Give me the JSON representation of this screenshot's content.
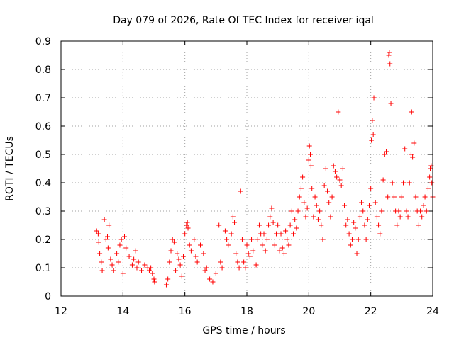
{
  "chart_data": {
    "type": "scatter",
    "title": "Day 079 of 2026, Rate Of TEC Index for receiver iqal",
    "xlabel": "GPS time / hours",
    "ylabel": "ROTI / TECUs",
    "xlim": [
      12,
      24
    ],
    "ylim": [
      0,
      0.9
    ],
    "x_ticks": [
      12,
      14,
      16,
      18,
      20,
      22,
      24
    ],
    "x_tick_labels": [
      "12",
      "14",
      "16",
      "18",
      "20",
      "22",
      "24"
    ],
    "y_ticks": [
      0,
      0.1,
      0.2,
      0.3,
      0.4,
      0.5,
      0.6,
      0.7,
      0.8,
      0.9
    ],
    "y_tick_labels": [
      "0",
      "0.1",
      "0.2",
      "0.3",
      "0.4",
      "0.5",
      "0.6",
      "0.7",
      "0.8",
      "0.9"
    ],
    "grid": true,
    "marker": "plus",
    "color": "#ff0000",
    "series": [
      {
        "name": "ROTI",
        "points": [
          [
            13.15,
            0.23
          ],
          [
            13.2,
            0.22
          ],
          [
            13.22,
            0.19
          ],
          [
            13.25,
            0.15
          ],
          [
            13.3,
            0.12
          ],
          [
            13.33,
            0.09
          ],
          [
            13.4,
            0.27
          ],
          [
            13.45,
            0.2
          ],
          [
            13.5,
            0.21
          ],
          [
            13.52,
            0.17
          ],
          [
            13.55,
            0.25
          ],
          [
            13.6,
            0.13
          ],
          [
            13.65,
            0.11
          ],
          [
            13.7,
            0.09
          ],
          [
            13.8,
            0.15
          ],
          [
            13.85,
            0.12
          ],
          [
            13.9,
            0.18
          ],
          [
            13.95,
            0.2
          ],
          [
            14.0,
            0.08
          ],
          [
            14.05,
            0.21
          ],
          [
            14.1,
            0.17
          ],
          [
            14.2,
            0.14
          ],
          [
            14.3,
            0.11
          ],
          [
            14.35,
            0.13
          ],
          [
            14.4,
            0.16
          ],
          [
            14.45,
            0.1
          ],
          [
            14.5,
            0.12
          ],
          [
            14.6,
            0.09
          ],
          [
            14.7,
            0.11
          ],
          [
            14.8,
            0.1
          ],
          [
            14.85,
            0.09
          ],
          [
            14.9,
            0.1
          ],
          [
            14.95,
            0.08
          ],
          [
            15.0,
            0.06
          ],
          [
            15.02,
            0.05
          ],
          [
            15.4,
            0.04
          ],
          [
            15.45,
            0.06
          ],
          [
            15.5,
            0.12
          ],
          [
            15.55,
            0.16
          ],
          [
            15.6,
            0.2
          ],
          [
            15.65,
            0.19
          ],
          [
            15.7,
            0.09
          ],
          [
            15.75,
            0.15
          ],
          [
            15.8,
            0.13
          ],
          [
            15.85,
            0.11
          ],
          [
            15.9,
            0.07
          ],
          [
            15.95,
            0.14
          ],
          [
            16.0,
            0.22
          ],
          [
            16.05,
            0.25
          ],
          [
            16.08,
            0.26
          ],
          [
            16.1,
            0.24
          ],
          [
            16.15,
            0.18
          ],
          [
            16.2,
            0.16
          ],
          [
            16.3,
            0.2
          ],
          [
            16.35,
            0.14
          ],
          [
            16.4,
            0.12
          ],
          [
            16.5,
            0.18
          ],
          [
            16.6,
            0.15
          ],
          [
            16.65,
            0.09
          ],
          [
            16.7,
            0.1
          ],
          [
            16.8,
            0.06
          ],
          [
            16.9,
            0.05
          ],
          [
            17.0,
            0.08
          ],
          [
            17.1,
            0.25
          ],
          [
            17.15,
            0.12
          ],
          [
            17.2,
            0.1
          ],
          [
            17.3,
            0.23
          ],
          [
            17.35,
            0.2
          ],
          [
            17.4,
            0.18
          ],
          [
            17.5,
            0.22
          ],
          [
            17.55,
            0.28
          ],
          [
            17.6,
            0.26
          ],
          [
            17.65,
            0.15
          ],
          [
            17.7,
            0.12
          ],
          [
            17.75,
            0.1
          ],
          [
            17.8,
            0.37
          ],
          [
            17.85,
            0.2
          ],
          [
            17.9,
            0.12
          ],
          [
            17.95,
            0.1
          ],
          [
            18.0,
            0.18
          ],
          [
            18.05,
            0.15
          ],
          [
            18.1,
            0.14
          ],
          [
            18.15,
            0.2
          ],
          [
            18.2,
            0.16
          ],
          [
            18.3,
            0.11
          ],
          [
            18.35,
            0.2
          ],
          [
            18.4,
            0.25
          ],
          [
            18.45,
            0.22
          ],
          [
            18.5,
            0.18
          ],
          [
            18.55,
            0.22
          ],
          [
            18.6,
            0.16
          ],
          [
            18.65,
            0.2
          ],
          [
            18.7,
            0.25
          ],
          [
            18.75,
            0.28
          ],
          [
            18.8,
            0.31
          ],
          [
            18.85,
            0.26
          ],
          [
            18.9,
            0.18
          ],
          [
            18.95,
            0.22
          ],
          [
            19.0,
            0.25
          ],
          [
            19.05,
            0.16
          ],
          [
            19.1,
            0.22
          ],
          [
            19.15,
            0.17
          ],
          [
            19.2,
            0.15
          ],
          [
            19.25,
            0.23
          ],
          [
            19.3,
            0.2
          ],
          [
            19.35,
            0.18
          ],
          [
            19.4,
            0.25
          ],
          [
            19.45,
            0.3
          ],
          [
            19.5,
            0.22
          ],
          [
            19.55,
            0.27
          ],
          [
            19.6,
            0.24
          ],
          [
            19.65,
            0.3
          ],
          [
            19.7,
            0.35
          ],
          [
            19.75,
            0.38
          ],
          [
            19.8,
            0.42
          ],
          [
            19.85,
            0.33
          ],
          [
            19.9,
            0.28
          ],
          [
            19.95,
            0.31
          ],
          [
            20.0,
            0.48
          ],
          [
            20.02,
            0.53
          ],
          [
            20.05,
            0.5
          ],
          [
            20.07,
            0.46
          ],
          [
            20.1,
            0.38
          ],
          [
            20.15,
            0.28
          ],
          [
            20.2,
            0.35
          ],
          [
            20.25,
            0.32
          ],
          [
            20.3,
            0.27
          ],
          [
            20.35,
            0.3
          ],
          [
            20.4,
            0.25
          ],
          [
            20.45,
            0.2
          ],
          [
            20.5,
            0.39
          ],
          [
            20.55,
            0.45
          ],
          [
            20.6,
            0.37
          ],
          [
            20.65,
            0.33
          ],
          [
            20.7,
            0.28
          ],
          [
            20.75,
            0.35
          ],
          [
            20.8,
            0.46
          ],
          [
            20.85,
            0.44
          ],
          [
            20.9,
            0.42
          ],
          [
            20.95,
            0.65
          ],
          [
            21.0,
            0.41
          ],
          [
            21.05,
            0.39
          ],
          [
            21.1,
            0.45
          ],
          [
            21.15,
            0.32
          ],
          [
            21.2,
            0.25
          ],
          [
            21.25,
            0.27
          ],
          [
            21.3,
            0.22
          ],
          [
            21.35,
            0.18
          ],
          [
            21.4,
            0.2
          ],
          [
            21.45,
            0.26
          ],
          [
            21.5,
            0.24
          ],
          [
            21.55,
            0.15
          ],
          [
            21.6,
            0.2
          ],
          [
            21.65,
            0.28
          ],
          [
            21.7,
            0.33
          ],
          [
            21.75,
            0.3
          ],
          [
            21.8,
            0.25
          ],
          [
            21.85,
            0.2
          ],
          [
            21.9,
            0.27
          ],
          [
            21.95,
            0.32
          ],
          [
            22.0,
            0.38
          ],
          [
            22.02,
            0.55
          ],
          [
            22.05,
            0.62
          ],
          [
            22.08,
            0.57
          ],
          [
            22.1,
            0.7
          ],
          [
            22.15,
            0.33
          ],
          [
            22.2,
            0.28
          ],
          [
            22.25,
            0.25
          ],
          [
            22.3,
            0.22
          ],
          [
            22.35,
            0.3
          ],
          [
            22.4,
            0.41
          ],
          [
            22.45,
            0.5
          ],
          [
            22.5,
            0.51
          ],
          [
            22.55,
            0.35
          ],
          [
            22.58,
            0.85
          ],
          [
            22.6,
            0.86
          ],
          [
            22.62,
            0.82
          ],
          [
            22.65,
            0.68
          ],
          [
            22.7,
            0.4
          ],
          [
            22.75,
            0.35
          ],
          [
            22.8,
            0.3
          ],
          [
            22.85,
            0.25
          ],
          [
            22.9,
            0.3
          ],
          [
            22.95,
            0.28
          ],
          [
            23.0,
            0.35
          ],
          [
            23.05,
            0.4
          ],
          [
            23.1,
            0.52
          ],
          [
            23.15,
            0.3
          ],
          [
            23.2,
            0.28
          ],
          [
            23.25,
            0.4
          ],
          [
            23.3,
            0.5
          ],
          [
            23.32,
            0.65
          ],
          [
            23.35,
            0.49
          ],
          [
            23.4,
            0.54
          ],
          [
            23.45,
            0.35
          ],
          [
            23.5,
            0.3
          ],
          [
            23.55,
            0.25
          ],
          [
            23.6,
            0.3
          ],
          [
            23.65,
            0.28
          ],
          [
            23.7,
            0.32
          ],
          [
            23.75,
            0.35
          ],
          [
            23.8,
            0.3
          ],
          [
            23.85,
            0.38
          ],
          [
            23.9,
            0.42
          ],
          [
            23.92,
            0.45
          ],
          [
            23.95,
            0.46
          ],
          [
            23.97,
            0.4
          ],
          [
            24.0,
            0.35
          ]
        ]
      }
    ]
  }
}
